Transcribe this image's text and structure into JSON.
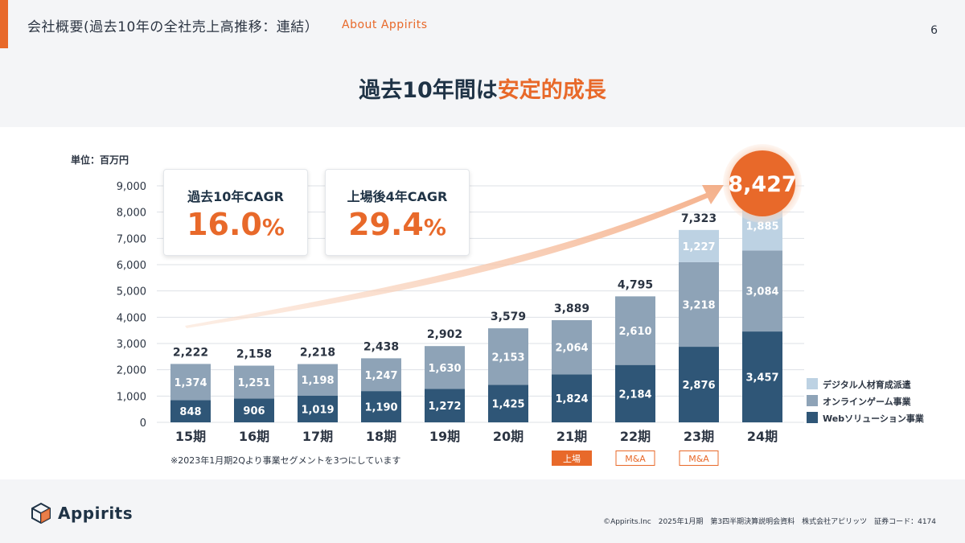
{
  "header": {
    "title": "会社概要(過去10年の全社売上高推移：連結）",
    "subtitle": "About Appirits",
    "page_number": "6"
  },
  "headline": {
    "part1": "過去10年間は",
    "part2": "安定的成長"
  },
  "kpis": [
    {
      "label": "過去10年CAGR",
      "value": "16.0",
      "unit": "%"
    },
    {
      "label": "上場後4年CAGR",
      "value": "29.4",
      "unit": "%"
    }
  ],
  "note": "※2023年1月期2Qより事業セグメントを3つにしています",
  "period_tags": [
    {
      "period": "21期",
      "label": "上場",
      "style": "filled"
    },
    {
      "period": "22期",
      "label": "M&A",
      "style": "outline"
    },
    {
      "period": "23期",
      "label": "M&A",
      "style": "outline"
    }
  ],
  "footer": {
    "logo_text": "Appirits",
    "copyright": "©Appirits.Inc　2025年1月期　第3四半期決算説明会資料　株式会社アピリッツ　証券コード：4174"
  },
  "colors": {
    "accent": "#e8692a",
    "web": "#2f5677",
    "online": "#8ea3b7",
    "digital": "#bdd2e3"
  },
  "chart_data": {
    "type": "bar",
    "stacked": true,
    "unit_label": "単位：百万円",
    "categories": [
      "15期",
      "16期",
      "17期",
      "18期",
      "19期",
      "20期",
      "21期",
      "22期",
      "23期",
      "24期"
    ],
    "series": [
      {
        "name": "Webソリューション事業",
        "color": "#2f5677",
        "values": [
          848,
          906,
          1019,
          1190,
          1272,
          1425,
          1824,
          2184,
          2876,
          3457
        ]
      },
      {
        "name": "オンラインゲーム事業",
        "color": "#8ea3b7",
        "values": [
          1374,
          1251,
          1198,
          1247,
          1630,
          2153,
          2064,
          2610,
          3218,
          3084
        ]
      },
      {
        "name": "デジタル人材育成派遣",
        "color": "#bdd2e3",
        "values": [
          null,
          null,
          null,
          null,
          null,
          null,
          null,
          null,
          1227,
          1885
        ]
      }
    ],
    "totals": [
      2222,
      2158,
      2218,
      2438,
      2902,
      3579,
      3889,
      4795,
      7323,
      8427
    ],
    "yticks": [
      "0",
      "1,000",
      "2,000",
      "3,000",
      "4,000",
      "5,000",
      "6,000",
      "7,000",
      "8,000",
      "9,000"
    ],
    "ylim": [
      0,
      9000
    ],
    "highlight_total": "8,427",
    "legend_position": "bottom-right",
    "grid": true
  }
}
